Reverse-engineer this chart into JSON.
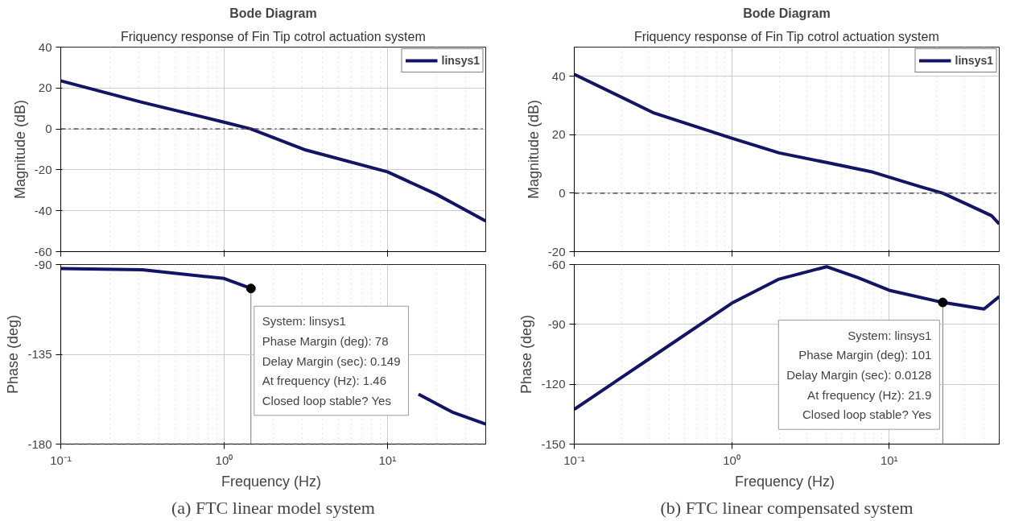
{
  "chart_data": [
    {
      "type": "line",
      "title": "Bode Diagram",
      "subtitle": "Friquency response of Fin Tip cotrol actuation system",
      "ylabel": "Magnitude (dB)",
      "log": "x",
      "grid": true,
      "legend": "top right",
      "tick_labels": "y",
      "xlim": [
        0.1,
        40
      ],
      "xticks": [
        0.1,
        1,
        10
      ],
      "ylim": [
        -60,
        40
      ],
      "yticks": [
        -60,
        -40,
        -20,
        0,
        20,
        40
      ],
      "ref_lines": [
        {
          "axis": "y",
          "value": 0,
          "label": null,
          "color": "#555555",
          "line_style": "dashdot"
        }
      ],
      "series": [
        {
          "name": "linsys1",
          "color": "#141466",
          "x": [
            0.1,
            0.316,
            1,
            1.46,
            3.16,
            10,
            20,
            40
          ],
          "values": [
            23.5,
            13,
            3.3,
            0,
            -10.3,
            -21,
            -32,
            -45
          ]
        }
      ]
    },
    {
      "type": "line",
      "title": "Bode Diagram",
      "subtitle": "Friquency response of Fin Tip cotrol actuation system",
      "ylabel": "Magnitude (dB)",
      "log": "x",
      "grid": true,
      "legend": "top right",
      "tick_labels": "y",
      "xlim": [
        0.1,
        50
      ],
      "xticks": [
        0.1,
        1,
        10
      ],
      "ylim": [
        -20,
        50
      ],
      "yticks": [
        -20,
        0,
        20,
        40
      ],
      "ref_lines": [
        {
          "axis": "y",
          "value": 0,
          "label": null,
          "color": "#555555",
          "line_style": "dashdot"
        }
      ],
      "series": [
        {
          "name": "linsys1",
          "color": "#141466",
          "x": [
            0.1,
            0.316,
            1,
            2,
            4,
            7.9,
            15.8,
            21.9,
            31.6,
            44.7,
            50
          ],
          "values": [
            40.7,
            27.6,
            18.8,
            13.8,
            10.5,
            7.2,
            2.2,
            0,
            -3.9,
            -7.7,
            -10.5
          ]
        }
      ]
    },
    {
      "type": "line",
      "xlabel": "Frequency  (Hz)",
      "ylabel": "Phase (deg)",
      "log": "x",
      "grid": true,
      "xlim": [
        0.1,
        40
      ],
      "xticks": [
        {
          "value": 0.1,
          "label": "10⁻¹"
        },
        {
          "value": 1,
          "label": "10⁰"
        },
        {
          "value": 10,
          "label": "10¹"
        }
      ],
      "ylim": [
        -180,
        -90
      ],
      "yticks": [
        -180,
        -135,
        -90
      ],
      "ref_lines": [
        {
          "axis": "y",
          "value": -180,
          "label": null,
          "color": "#555555",
          "line_style": "dashdot"
        }
      ],
      "annotations": [
        {
          "text": "System: linsys1\nPhase Margin (deg): 78\nDelay Margin (sec): 0.149\nAt frequency (Hz): 1.46\nClosed loop stable? Yes",
          "x": 1.46,
          "y": -102
        },
        "(a) FTC linear model system"
      ],
      "series": [
        {
          "color": "#141466",
          "x": [
            0.1,
            0.316,
            1,
            1.46,
            2,
            5,
            10,
            15.5,
            25,
            40
          ],
          "values": [
            -92,
            -92.6,
            -97,
            -102,
            null,
            null,
            null,
            -155,
            -164,
            -170
          ]
        },
        {
          "type": "scatter",
          "marker": "circle",
          "color": "#000000",
          "x": [
            1.46
          ],
          "values": [
            -102
          ],
          "errors": [
            [
              -180,
              -102
            ]
          ]
        }
      ]
    },
    {
      "type": "line",
      "xlabel": "Frequency  (Hz)",
      "ylabel": "Phase (deg)",
      "log": "x",
      "grid": true,
      "xlim": [
        0.1,
        50
      ],
      "xticks": [
        {
          "value": 0.1,
          "label": "10⁻¹"
        },
        {
          "value": 1,
          "label": "10⁰"
        },
        {
          "value": 10,
          "label": "10¹"
        }
      ],
      "ylim": [
        -150,
        -60
      ],
      "yticks": [
        -150,
        -120,
        -90,
        -60
      ],
      "annotations": [
        {
          "text": "System: linsys1\nPhase Margin (deg): 101\nDelay Margin (sec): 0.0128\nAt frequency (Hz): 21.9\nClosed loop stable? Yes",
          "x": 21.9,
          "y": -79
        },
        "(b) FTC linear compensated system"
      ],
      "series": [
        {
          "color": "#141466",
          "x": [
            0.1,
            0.316,
            1,
            2,
            4,
            6.3,
            10,
            21.9,
            31.6,
            40,
            50
          ],
          "values": [
            -132.6,
            -106,
            -79.4,
            -67.3,
            -61.1,
            -66.5,
            -72.9,
            -79,
            -81,
            -82.3,
            -76.1
          ]
        },
        {
          "type": "scatter",
          "marker": "circle",
          "color": "#000000",
          "x": [
            21.9
          ],
          "values": [
            -79
          ],
          "errors": [
            [
              -150,
              -79
            ]
          ]
        }
      ]
    }
  ]
}
